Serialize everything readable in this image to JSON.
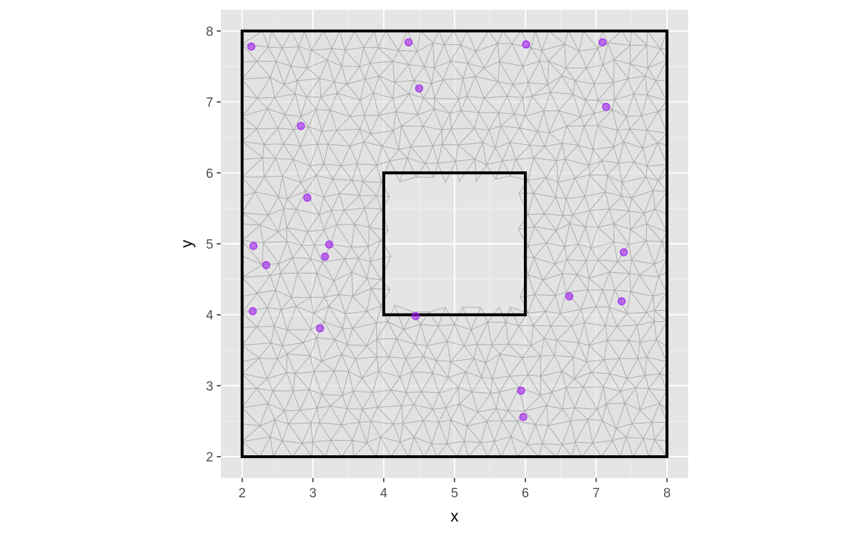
{
  "chart_data": {
    "type": "scatter",
    "title": "",
    "xlabel": "x",
    "ylabel": "y",
    "xlim": [
      1.7,
      8.3
    ],
    "ylim": [
      1.7,
      8.3
    ],
    "x_ticks": [
      2,
      3,
      4,
      5,
      6,
      7,
      8
    ],
    "y_ticks": [
      2,
      3,
      4,
      5,
      6,
      7,
      8
    ],
    "x_tick_labels": [
      "2",
      "3",
      "4",
      "5",
      "6",
      "7",
      "8"
    ],
    "y_tick_labels": [
      "2",
      "3",
      "4",
      "5",
      "6",
      "7",
      "8"
    ],
    "grid": true,
    "panel_background": "#e5e5e5",
    "mesh_color": "#a8a8a8",
    "domain_fill": "#e0e0e0",
    "boundary_color": "#000000",
    "point_color": "#a020f0",
    "outer_boundary": [
      [
        2,
        2
      ],
      [
        8,
        2
      ],
      [
        8,
        8
      ],
      [
        2,
        8
      ]
    ],
    "hole_boundary": [
      [
        4,
        4
      ],
      [
        6,
        4
      ],
      [
        6,
        6
      ],
      [
        4,
        6
      ]
    ],
    "points": [
      {
        "x": 2.13,
        "y": 7.78
      },
      {
        "x": 4.35,
        "y": 7.84
      },
      {
        "x": 6.01,
        "y": 7.81
      },
      {
        "x": 7.09,
        "y": 7.84
      },
      {
        "x": 4.5,
        "y": 7.19
      },
      {
        "x": 7.14,
        "y": 6.93
      },
      {
        "x": 2.83,
        "y": 6.66
      },
      {
        "x": 2.92,
        "y": 5.65
      },
      {
        "x": 2.16,
        "y": 4.97
      },
      {
        "x": 3.23,
        "y": 4.99
      },
      {
        "x": 3.17,
        "y": 4.82
      },
      {
        "x": 2.34,
        "y": 4.7
      },
      {
        "x": 7.39,
        "y": 4.88
      },
      {
        "x": 6.62,
        "y": 4.26
      },
      {
        "x": 7.36,
        "y": 4.19
      },
      {
        "x": 2.15,
        "y": 4.05
      },
      {
        "x": 4.45,
        "y": 3.98
      },
      {
        "x": 3.1,
        "y": 3.81
      },
      {
        "x": 5.94,
        "y": 2.93
      },
      {
        "x": 5.97,
        "y": 2.56
      }
    ]
  }
}
